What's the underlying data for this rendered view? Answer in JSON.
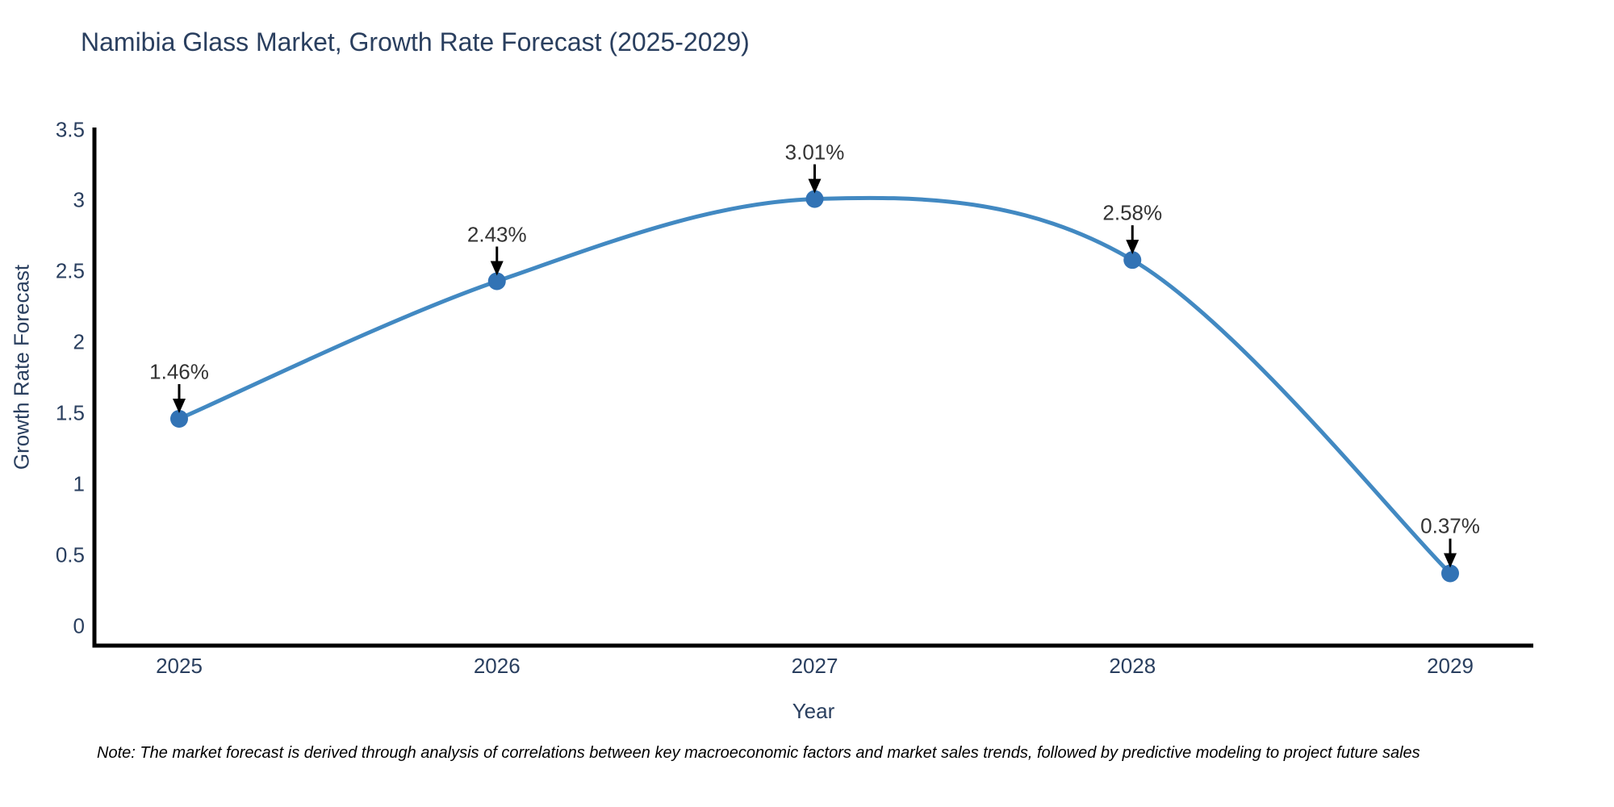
{
  "title": "Namibia Glass Market, Growth Rate Forecast (2025-2029)",
  "note": "Note: The market forecast is derived through analysis of correlations between key macroeconomic factors and market sales trends, followed by predictive modeling to project future sales",
  "chart_data": {
    "type": "line",
    "title": "Namibia Glass Market, Growth Rate Forecast (2025-2029)",
    "xlabel": "Year",
    "ylabel": "Growth Rate Forecast",
    "x": [
      2025,
      2026,
      2027,
      2028,
      2029
    ],
    "values": [
      1.46,
      2.43,
      3.01,
      2.58,
      0.37
    ],
    "point_labels": [
      "1.46%",
      "2.43%",
      "3.01%",
      "2.58%",
      "0.37%"
    ],
    "xtick_labels": [
      "2025",
      "2026",
      "2027",
      "2028",
      "2029"
    ],
    "yticks": [
      0,
      0.5,
      1,
      1.5,
      2,
      2.5,
      3,
      3.5
    ],
    "ytick_labels": [
      "0",
      "0.5",
      "1",
      "1.5",
      "2",
      "2.5",
      "3",
      "3.5"
    ],
    "ylim": [
      0,
      3.5
    ],
    "grid": false,
    "legend_position": "none",
    "line_shape": "spline",
    "colors": {
      "line": "#4289c2",
      "marker": "#3273b5",
      "axis": "#000000",
      "axis_text": "#2a3f5f",
      "label_text": "#333333",
      "arrow": "#000000",
      "background": "#ffffff"
    }
  }
}
